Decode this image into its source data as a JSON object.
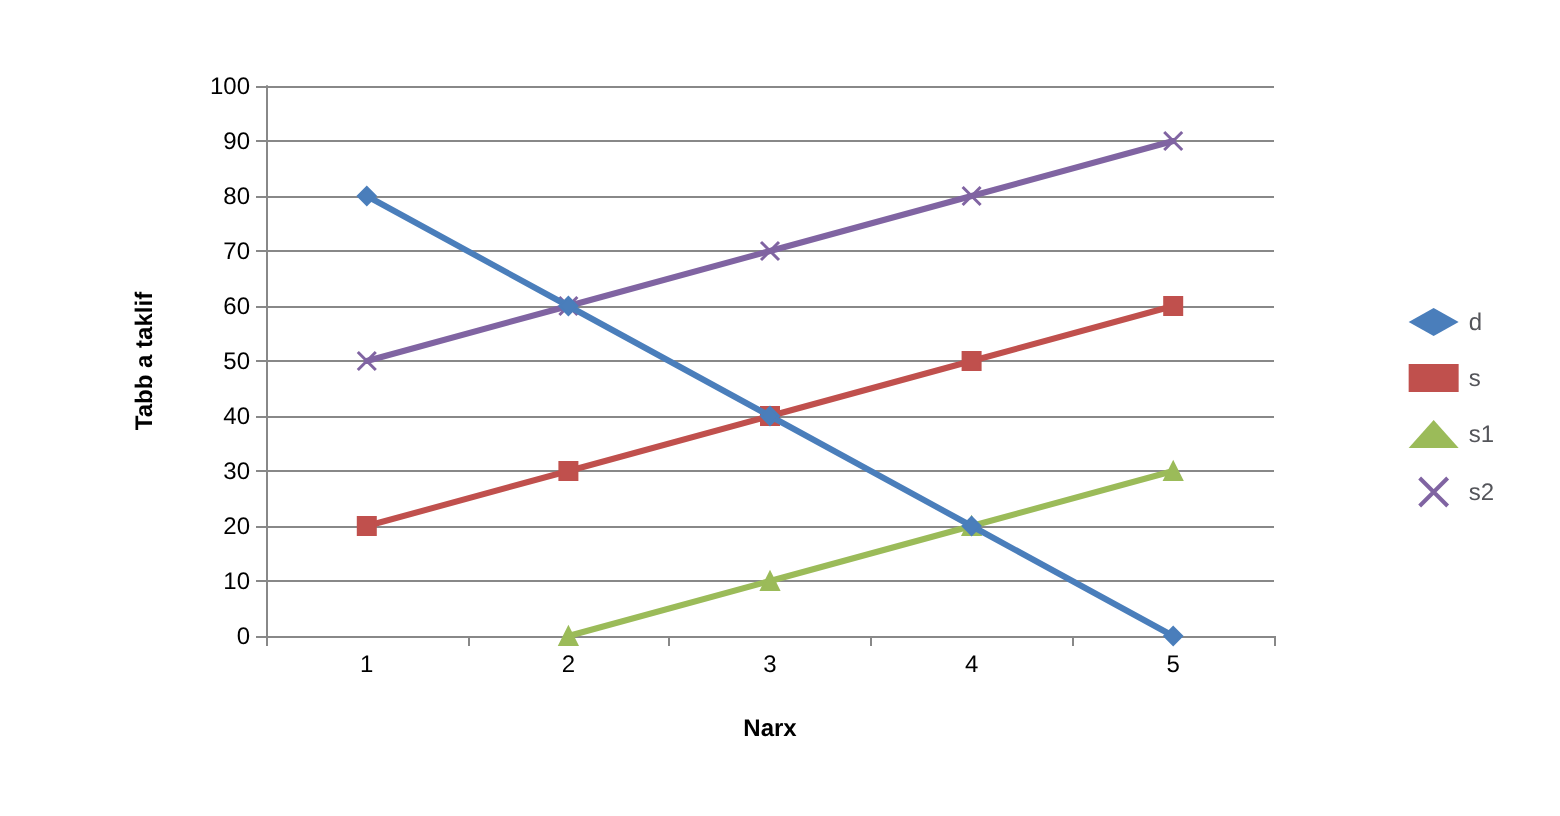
{
  "chart_data": {
    "type": "line",
    "xlabel": "Narx",
    "ylabel": "Tabb a taklif",
    "categories": [
      "1",
      "2",
      "3",
      "4",
      "5"
    ],
    "series": [
      {
        "name": "d",
        "color": "#4a7ebb",
        "marker": "diamond",
        "values": [
          80,
          60,
          40,
          20,
          0
        ]
      },
      {
        "name": "s",
        "color": "#c0504d",
        "marker": "square",
        "values": [
          20,
          30,
          40,
          50,
          60
        ]
      },
      {
        "name": "s1",
        "color": "#9bbb59",
        "marker": "triangle",
        "values": [
          null,
          0,
          10,
          20,
          30
        ]
      },
      {
        "name": "s2",
        "color": "#8064a2",
        "marker": "cross",
        "values": [
          50,
          60,
          70,
          80,
          90
        ]
      }
    ],
    "ylim": [
      0,
      100
    ],
    "yticks": [
      0,
      10,
      20,
      30,
      40,
      50,
      60,
      70,
      80,
      90,
      100
    ],
    "grid": "y",
    "legend": "right"
  }
}
